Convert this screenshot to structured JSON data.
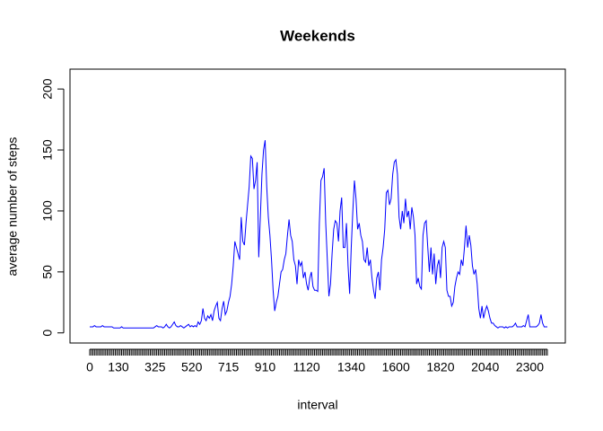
{
  "chart_data": {
    "type": "line",
    "title": "Weekends",
    "x_label": "interval",
    "y_label": "average number of steps",
    "categories": [
      "0",
      null,
      null,
      null,
      null,
      null,
      null,
      null,
      null,
      null,
      null,
      null,
      null,
      null,
      null,
      null,
      null,
      null,
      "130",
      null,
      null,
      null,
      null,
      null,
      null,
      null,
      null,
      null,
      null,
      null,
      null,
      null,
      null,
      null,
      null,
      null,
      null,
      null,
      null,
      null,
      null,
      "325",
      null,
      null,
      null,
      null,
      null,
      null,
      null,
      null,
      null,
      null,
      null,
      null,
      null,
      null,
      null,
      null,
      null,
      null,
      null,
      null,
      null,
      null,
      "520",
      null,
      null,
      null,
      null,
      null,
      null,
      null,
      null,
      null,
      null,
      null,
      null,
      null,
      null,
      null,
      null,
      null,
      null,
      null,
      null,
      null,
      null,
      "715",
      null,
      null,
      null,
      null,
      null,
      null,
      null,
      null,
      null,
      null,
      null,
      null,
      null,
      null,
      null,
      null,
      null,
      null,
      null,
      null,
      null,
      null,
      "910",
      null,
      null,
      null,
      null,
      null,
      null,
      null,
      null,
      null,
      null,
      null,
      null,
      null,
      null,
      null,
      null,
      null,
      null,
      null,
      null,
      null,
      null,
      null,
      null,
      null,
      "1120",
      null,
      null,
      null,
      null,
      null,
      null,
      null,
      null,
      null,
      null,
      null,
      null,
      null,
      null,
      null,
      null,
      null,
      null,
      null,
      null,
      null,
      null,
      null,
      null,
      null,
      null,
      null,
      "1340",
      null,
      null,
      null,
      null,
      null,
      null,
      null,
      null,
      null,
      null,
      null,
      null,
      null,
      null,
      null,
      null,
      null,
      null,
      null,
      null,
      null,
      null,
      null,
      null,
      null,
      null,
      null,
      "1600",
      null,
      null,
      null,
      null,
      null,
      null,
      null,
      null,
      null,
      null,
      null,
      null,
      null,
      null,
      null,
      null,
      null,
      null,
      null,
      null,
      null,
      null,
      null,
      null,
      null,
      null,
      null,
      "1820",
      null,
      null,
      null,
      null,
      null,
      null,
      null,
      null,
      null,
      null,
      null,
      null,
      null,
      null,
      null,
      null,
      null,
      null,
      null,
      null,
      null,
      null,
      null,
      null,
      null,
      null,
      null,
      "2040",
      null,
      null,
      null,
      null,
      null,
      null,
      null,
      null,
      null,
      null,
      null,
      null,
      null,
      null,
      null,
      null,
      null,
      null,
      null,
      null,
      null,
      null,
      null,
      null,
      null,
      null,
      null,
      "2300",
      null,
      null,
      null,
      null,
      null,
      null,
      null,
      null,
      null,
      null,
      null
    ],
    "values": [
      5,
      5,
      5,
      6,
      5,
      5,
      5,
      5,
      6,
      5,
      5,
      5,
      5,
      5,
      5,
      4,
      4,
      4,
      4,
      4,
      5,
      4,
      4,
      4,
      4,
      4,
      4,
      4,
      4,
      4,
      4,
      4,
      4,
      4,
      4,
      4,
      4,
      4,
      4,
      4,
      4,
      5,
      6,
      5,
      5,
      5,
      4,
      5,
      7,
      5,
      4,
      5,
      7,
      9,
      6,
      5,
      5,
      6,
      5,
      4,
      5,
      6,
      7,
      5,
      6,
      5,
      6,
      5,
      9,
      7,
      10,
      20,
      12,
      10,
      14,
      12,
      15,
      10,
      18,
      22,
      25,
      12,
      10,
      20,
      26,
      15,
      18,
      25,
      30,
      40,
      55,
      75,
      70,
      65,
      60,
      95,
      75,
      72,
      90,
      105,
      120,
      145,
      143,
      118,
      125,
      140,
      62,
      95,
      130,
      150,
      158,
      120,
      95,
      80,
      60,
      35,
      18,
      25,
      30,
      40,
      50,
      52,
      60,
      65,
      80,
      93,
      80,
      75,
      60,
      55,
      40,
      60,
      55,
      58,
      45,
      50,
      40,
      35,
      45,
      50,
      38,
      35,
      35,
      34,
      90,
      125,
      128,
      135,
      90,
      60,
      30,
      40,
      65,
      85,
      92,
      90,
      75,
      100,
      111,
      70,
      70,
      90,
      55,
      32,
      70,
      100,
      125,
      110,
      85,
      90,
      80,
      75,
      60,
      58,
      70,
      55,
      60,
      45,
      35,
      28,
      45,
      50,
      35,
      60,
      70,
      85,
      115,
      117,
      105,
      110,
      130,
      140,
      142,
      130,
      95,
      85,
      100,
      90,
      110,
      95,
      100,
      85,
      103,
      95,
      80,
      40,
      45,
      38,
      36,
      80,
      90,
      92,
      70,
      50,
      70,
      48,
      65,
      40,
      55,
      60,
      45,
      70,
      75,
      70,
      35,
      30,
      30,
      22,
      25,
      38,
      45,
      50,
      48,
      60,
      55,
      70,
      88,
      70,
      80,
      72,
      55,
      48,
      52,
      40,
      20,
      12,
      22,
      12,
      18,
      22,
      18,
      12,
      8,
      8,
      6,
      5,
      4,
      5,
      5,
      5,
      4,
      5,
      4,
      5,
      5,
      5,
      6,
      8,
      5,
      5,
      5,
      5,
      6,
      5,
      10,
      15,
      5,
      5,
      5,
      5,
      5,
      6,
      8,
      15,
      8,
      5,
      5,
      5
    ],
    "color": "#0000ff",
    "ylim": [
      -8.3,
      216.3
    ],
    "yticks": [
      0,
      50,
      100,
      150,
      200
    ]
  }
}
